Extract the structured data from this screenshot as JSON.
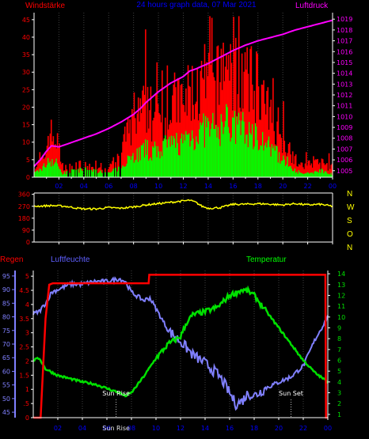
{
  "header": {
    "left_label": "Windstärke",
    "center_label": "24 hours graph data, 07 Mar 2021",
    "right_label": "Luftdruck"
  },
  "bottom_labels": {
    "regen": "Regen",
    "luftfeuchte": "Luftfeuchte",
    "temperatur": "Temperatur",
    "sun_rise": "Sun Rise",
    "sun_set": "Sun Set"
  },
  "colors": {
    "background": "#000000",
    "axis": "#ffffff",
    "grid": "#404040",
    "wind_gust": "#ff0000",
    "wind_avg": "#00ff00",
    "pressure": "#ff00ff",
    "direction": "#ffff00",
    "rain": "#ff0000",
    "humidity": "#8080ff",
    "temperature": "#00e000",
    "label_wind": "#ff0000",
    "label_title": "#0000ff",
    "label_pressure": "#ff00ff",
    "label_regen": "#ff0000",
    "label_humidity": "#6060ff",
    "label_temp": "#00ff00",
    "label_compass": "#ffff00"
  },
  "chart_data": [
    {
      "type": "bar",
      "id": "wind",
      "xlabel": "",
      "x_ticks": [
        "02",
        "04",
        "06",
        "08",
        "10",
        "12",
        "14",
        "16",
        "18",
        "20",
        "22",
        "00"
      ],
      "y_left_ticks": [
        "0",
        "5",
        "10",
        "15",
        "20",
        "25",
        "30",
        "35",
        "40",
        "45"
      ],
      "ylim_left": [
        0,
        47
      ],
      "y_right_ticks": [
        "1005",
        "1006",
        "1007",
        "1008",
        "1009",
        "1010",
        "1011",
        "1012",
        "1013",
        "1014",
        "1015",
        "1016",
        "1017",
        "1018",
        "1019"
      ],
      "ylim_right": [
        1004.4,
        1019.6
      ],
      "gust_knots": [
        [
          0.0,
          3
        ],
        [
          0.8,
          5
        ],
        [
          1.2,
          13
        ],
        [
          1.8,
          11
        ],
        [
          2.3,
          3
        ],
        [
          3.3,
          4
        ],
        [
          4.0,
          3
        ],
        [
          5.0,
          4
        ],
        [
          6.0,
          3
        ],
        [
          6.5,
          5
        ],
        [
          7.0,
          6
        ],
        [
          7.3,
          11
        ],
        [
          8.0,
          15
        ],
        [
          8.5,
          18
        ],
        [
          9.0,
          21
        ],
        [
          9.5,
          17
        ],
        [
          10.0,
          18
        ],
        [
          10.5,
          19
        ],
        [
          11.0,
          20
        ],
        [
          11.5,
          23
        ],
        [
          12.0,
          20
        ],
        [
          12.5,
          25
        ],
        [
          13.0,
          24
        ],
        [
          13.5,
          26
        ],
        [
          14.0,
          29
        ],
        [
          14.5,
          25
        ],
        [
          15.0,
          30
        ],
        [
          15.5,
          33
        ],
        [
          16.0,
          28
        ],
        [
          16.5,
          31
        ],
        [
          17.0,
          27
        ],
        [
          17.5,
          26
        ],
        [
          18.0,
          28
        ],
        [
          18.5,
          21
        ],
        [
          19.0,
          17
        ],
        [
          19.5,
          16
        ],
        [
          20.0,
          12
        ],
        [
          20.5,
          9
        ],
        [
          21.0,
          5
        ],
        [
          21.5,
          3
        ],
        [
          22.0,
          4
        ],
        [
          23.0,
          4
        ],
        [
          24.0,
          3
        ]
      ],
      "avg_knots": [
        [
          0.0,
          1
        ],
        [
          0.8,
          3
        ],
        [
          1.2,
          5
        ],
        [
          1.8,
          4
        ],
        [
          2.3,
          1
        ],
        [
          3.3,
          2
        ],
        [
          5.0,
          2
        ],
        [
          6.0,
          1
        ],
        [
          6.5,
          2
        ],
        [
          7.0,
          3
        ],
        [
          7.3,
          5
        ],
        [
          8.0,
          6
        ],
        [
          8.5,
          7
        ],
        [
          9.0,
          8
        ],
        [
          9.5,
          7
        ],
        [
          10.0,
          8
        ],
        [
          10.5,
          9
        ],
        [
          11.0,
          9
        ],
        [
          11.5,
          10
        ],
        [
          12.0,
          10
        ],
        [
          12.5,
          12
        ],
        [
          13.0,
          12
        ],
        [
          13.5,
          13
        ],
        [
          14.0,
          14
        ],
        [
          14.5,
          13
        ],
        [
          15.0,
          14
        ],
        [
          15.5,
          16
        ],
        [
          16.0,
          14
        ],
        [
          16.5,
          15
        ],
        [
          17.0,
          13
        ],
        [
          17.5,
          12
        ],
        [
          18.0,
          13
        ],
        [
          18.5,
          10
        ],
        [
          19.0,
          8
        ],
        [
          19.5,
          7
        ],
        [
          20.0,
          5
        ],
        [
          20.5,
          4
        ],
        [
          21.0,
          2
        ],
        [
          21.5,
          1
        ],
        [
          22.0,
          1
        ],
        [
          23.0,
          2
        ],
        [
          24.0,
          1
        ]
      ],
      "pressure_hpa": [
        [
          0.0,
          1005.4
        ],
        [
          0.5,
          1006.0
        ],
        [
          1.0,
          1006.8
        ],
        [
          1.4,
          1007.3
        ],
        [
          2.0,
          1007.2
        ],
        [
          3.0,
          1007.6
        ],
        [
          4.0,
          1008.0
        ],
        [
          5.0,
          1008.4
        ],
        [
          6.0,
          1008.9
        ],
        [
          7.0,
          1009.5
        ],
        [
          8.0,
          1010.2
        ],
        [
          8.6,
          1010.8
        ],
        [
          9.0,
          1011.3
        ],
        [
          10.0,
          1012.3
        ],
        [
          11.0,
          1013.1
        ],
        [
          12.0,
          1013.7
        ],
        [
          12.5,
          1014.2
        ],
        [
          13.0,
          1014.4
        ],
        [
          14.0,
          1014.9
        ],
        [
          15.0,
          1015.5
        ],
        [
          16.0,
          1016.1
        ],
        [
          17.0,
          1016.6
        ],
        [
          18.0,
          1017.0
        ],
        [
          19.0,
          1017.3
        ],
        [
          20.0,
          1017.6
        ],
        [
          21.0,
          1018.0
        ],
        [
          22.0,
          1018.3
        ],
        [
          23.0,
          1018.6
        ],
        [
          24.0,
          1018.9
        ]
      ]
    },
    {
      "type": "line",
      "id": "direction",
      "y_ticks": [
        "0",
        "90",
        "180",
        "270",
        "360"
      ],
      "ylim": [
        0,
        370
      ],
      "compass_labels": [
        "N",
        "W",
        "S",
        "O",
        "N"
      ],
      "direction_deg": [
        [
          0.0,
          270
        ],
        [
          1.5,
          275
        ],
        [
          2.5,
          270
        ],
        [
          3.5,
          255
        ],
        [
          4.0,
          250
        ],
        [
          5.0,
          250
        ],
        [
          6.0,
          260
        ],
        [
          7.0,
          255
        ],
        [
          8.0,
          265
        ],
        [
          9.0,
          280
        ],
        [
          10.0,
          290
        ],
        [
          11.0,
          300
        ],
        [
          12.0,
          310
        ],
        [
          12.5,
          315
        ],
        [
          13.0,
          300
        ],
        [
          13.5,
          270
        ],
        [
          14.0,
          255
        ],
        [
          15.0,
          260
        ],
        [
          16.0,
          285
        ],
        [
          17.0,
          285
        ],
        [
          18.0,
          290
        ],
        [
          19.0,
          285
        ],
        [
          20.0,
          280
        ],
        [
          21.0,
          290
        ],
        [
          22.0,
          280
        ],
        [
          23.0,
          285
        ],
        [
          24.0,
          270
        ]
      ]
    },
    {
      "type": "line",
      "id": "climate",
      "x_ticks": [
        "02",
        "04",
        "06",
        "08",
        "10",
        "12",
        "14",
        "16",
        "18",
        "20",
        "22",
        "00"
      ],
      "rain_ticks": [
        "0",
        ".5",
        "1",
        "1.5",
        "2",
        "2.5",
        "3",
        "3.5",
        "4",
        "4.5",
        "5"
      ],
      "rain_lim": [
        0,
        5.2
      ],
      "humidity_ticks": [
        "45",
        "50",
        "55",
        "60",
        "65",
        "70",
        "75",
        "80",
        "85",
        "90",
        "95"
      ],
      "humidity_lim": [
        43,
        97
      ],
      "temp_ticks": [
        "1",
        "2",
        "3",
        "4",
        "5",
        "6",
        "7",
        "8",
        "9",
        "10",
        "11",
        "12",
        "13",
        "14"
      ],
      "temp_lim": [
        0.7,
        14.3
      ],
      "rain_mm": [
        [
          0.0,
          0.0
        ],
        [
          0.6,
          0.0
        ],
        [
          0.75,
          1.3
        ],
        [
          1.0,
          3.5
        ],
        [
          1.3,
          4.7
        ],
        [
          1.6,
          4.75
        ],
        [
          7.5,
          4.75
        ],
        [
          9.4,
          4.75
        ],
        [
          9.45,
          5.05
        ],
        [
          23.8,
          5.05
        ],
        [
          23.85,
          0.0
        ],
        [
          24.0,
          0.0
        ]
      ],
      "humidity_pct": [
        [
          0.0,
          81
        ],
        [
          0.5,
          82
        ],
        [
          1.0,
          85
        ],
        [
          1.5,
          89
        ],
        [
          2.0,
          90
        ],
        [
          3.0,
          92
        ],
        [
          4.0,
          92
        ],
        [
          5.0,
          93
        ],
        [
          6.0,
          93
        ],
        [
          7.0,
          94
        ],
        [
          7.5,
          93
        ],
        [
          8.0,
          89
        ],
        [
          9.0,
          86
        ],
        [
          9.5,
          87
        ],
        [
          10.0,
          83
        ],
        [
          11.0,
          75
        ],
        [
          12.0,
          71
        ],
        [
          13.0,
          66
        ],
        [
          14.0,
          63
        ],
        [
          15.0,
          59
        ],
        [
          15.5,
          56
        ],
        [
          16.0,
          52
        ],
        [
          16.5,
          48
        ],
        [
          17.0,
          49
        ],
        [
          17.5,
          52
        ],
        [
          18.0,
          51
        ],
        [
          19.0,
          54
        ],
        [
          20.0,
          56
        ],
        [
          21.0,
          58
        ],
        [
          22.0,
          62
        ],
        [
          23.0,
          72
        ],
        [
          23.5,
          76
        ],
        [
          24.0,
          80
        ]
      ],
      "temp_c": [
        [
          0.0,
          6.0
        ],
        [
          0.5,
          6.2
        ],
        [
          1.0,
          5.2
        ],
        [
          2.0,
          4.6
        ],
        [
          3.0,
          4.3
        ],
        [
          4.0,
          4.0
        ],
        [
          5.0,
          3.8
        ],
        [
          6.0,
          3.4
        ],
        [
          7.0,
          3.0
        ],
        [
          7.5,
          2.7
        ],
        [
          8.0,
          3.0
        ],
        [
          9.0,
          4.5
        ],
        [
          10.0,
          6.2
        ],
        [
          11.0,
          7.5
        ],
        [
          12.0,
          8.2
        ],
        [
          12.5,
          9.5
        ],
        [
          13.0,
          10.2
        ],
        [
          14.0,
          10.5
        ],
        [
          15.0,
          10.9
        ],
        [
          16.0,
          12.0
        ],
        [
          17.0,
          12.5
        ],
        [
          17.5,
          12.4
        ],
        [
          18.0,
          12.0
        ],
        [
          19.0,
          10.5
        ],
        [
          20.0,
          9.0
        ],
        [
          21.0,
          7.5
        ],
        [
          22.0,
          6.0
        ],
        [
          23.0,
          4.8
        ],
        [
          24.0,
          4.0
        ]
      ],
      "sun_rise_h": 6.75,
      "sun_set_h": 21.0
    }
  ]
}
